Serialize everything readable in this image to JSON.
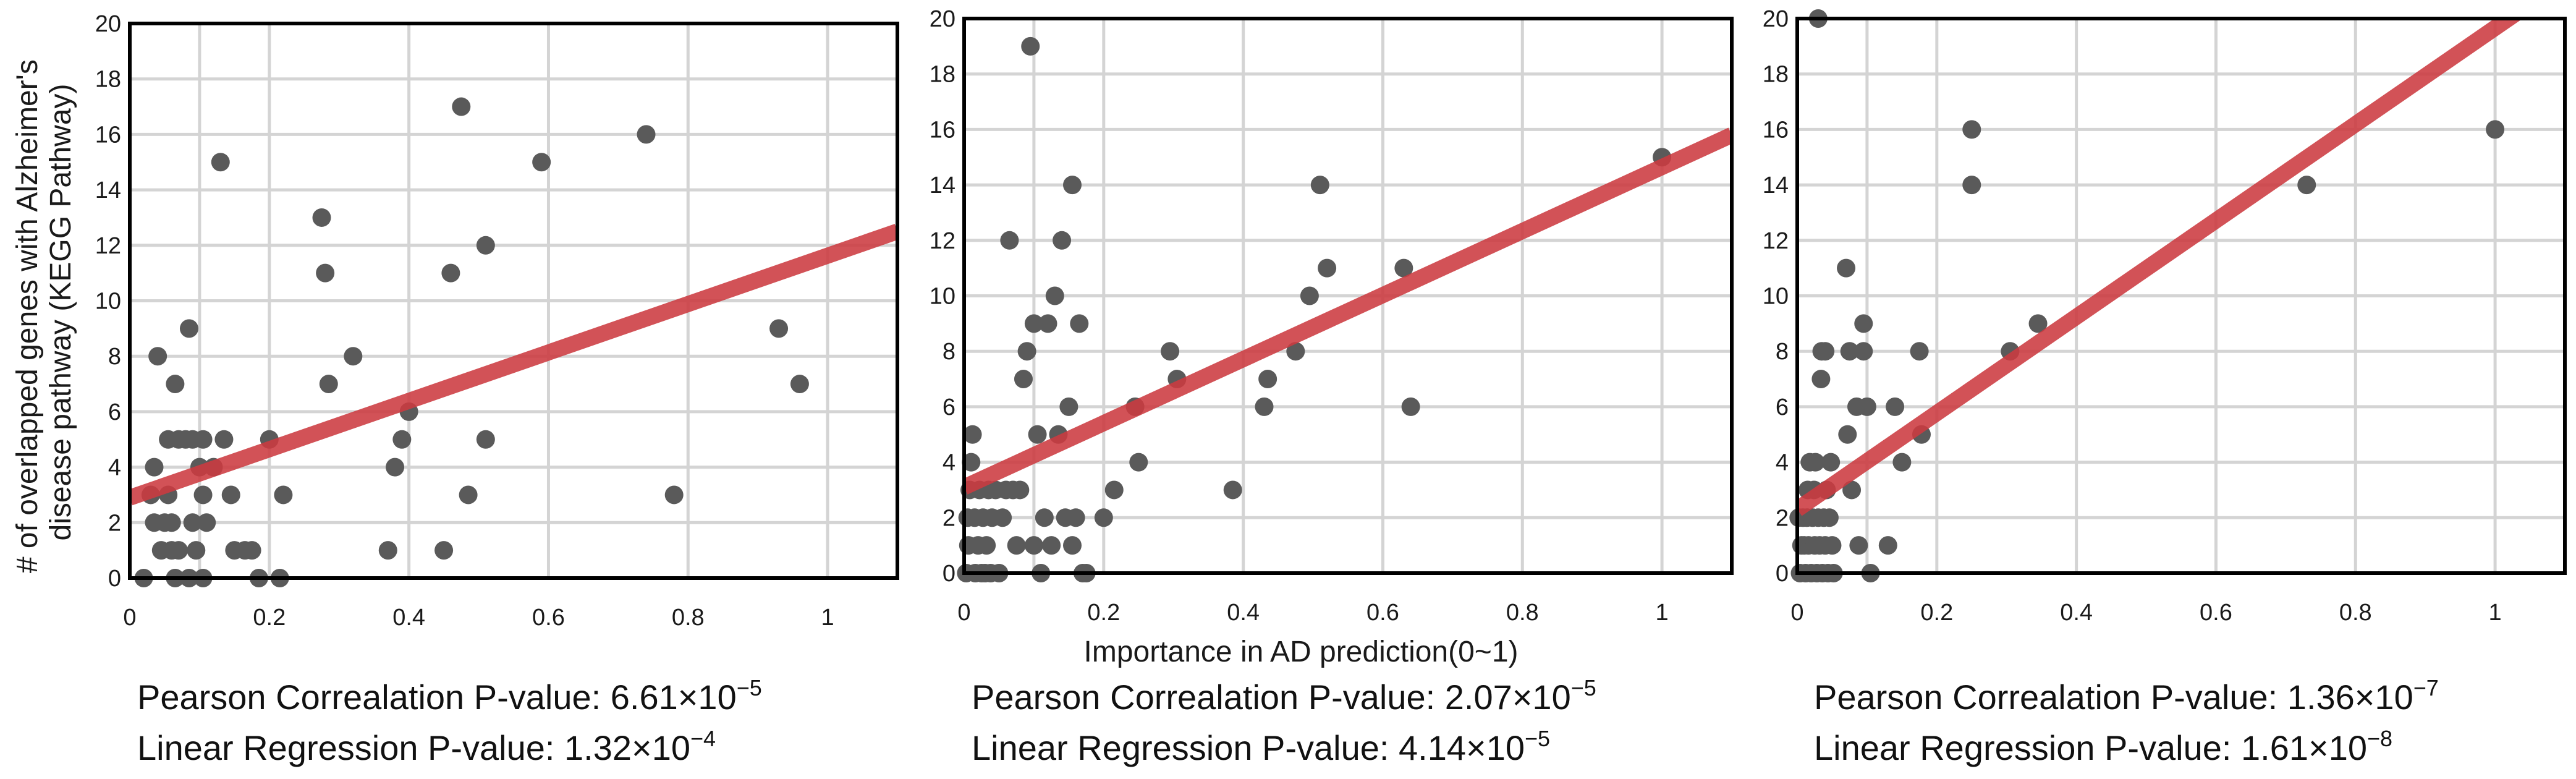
{
  "y_axis_title_line1": "# of overlapped genes with Alzheimer's",
  "y_axis_title_line2": "disease pathway (KEGG Pathway)",
  "x_axis_title": "Importance in AD prediction(0~1)",
  "colors": {
    "points": "#5a5a5a",
    "trend": "#cc3a40",
    "grid": "#d4d4d4",
    "frame": "#000000"
  },
  "chart_data": [
    {
      "type": "scatter",
      "title": "",
      "xlabel": "",
      "ylabel": "# of overlapped genes with Alzheimer's disease pathway (KEGG Pathway)",
      "xlim": [
        0,
        1.1
      ],
      "ylim": [
        0,
        20
      ],
      "xticks": [
        "0",
        "0.2",
        "0.4",
        "0.6",
        "0.8",
        "1"
      ],
      "yticks": [
        "0",
        "2",
        "4",
        "6",
        "8",
        "10",
        "12",
        "14",
        "16",
        "18",
        "20"
      ],
      "trendline": {
        "x0": 0,
        "y0": 2.9,
        "x1": 1.1,
        "y1": 12.5
      },
      "points": [
        [
          0.02,
          0
        ],
        [
          0.03,
          3
        ],
        [
          0.035,
          4
        ],
        [
          0.04,
          8
        ],
        [
          0.035,
          2
        ],
        [
          0.045,
          1
        ],
        [
          0.05,
          2
        ],
        [
          0.055,
          5
        ],
        [
          0.055,
          3
        ],
        [
          0.06,
          2
        ],
        [
          0.06,
          1
        ],
        [
          0.065,
          7
        ],
        [
          0.065,
          0
        ],
        [
          0.07,
          5
        ],
        [
          0.07,
          1
        ],
        [
          0.08,
          5
        ],
        [
          0.085,
          9
        ],
        [
          0.085,
          0
        ],
        [
          0.09,
          5
        ],
        [
          0.09,
          2
        ],
        [
          0.095,
          1
        ],
        [
          0.1,
          4
        ],
        [
          0.105,
          3
        ],
        [
          0.105,
          5
        ],
        [
          0.105,
          0
        ],
        [
          0.11,
          2
        ],
        [
          0.12,
          4
        ],
        [
          0.13,
          15
        ],
        [
          0.135,
          5
        ],
        [
          0.145,
          3
        ],
        [
          0.15,
          1
        ],
        [
          0.165,
          1
        ],
        [
          0.175,
          1
        ],
        [
          0.185,
          0
        ],
        [
          0.2,
          5
        ],
        [
          0.215,
          0
        ],
        [
          0.22,
          3
        ],
        [
          0.275,
          13
        ],
        [
          0.28,
          11
        ],
        [
          0.285,
          7
        ],
        [
          0.32,
          8
        ],
        [
          0.37,
          1
        ],
        [
          0.38,
          4
        ],
        [
          0.39,
          5
        ],
        [
          0.4,
          6
        ],
        [
          0.45,
          1
        ],
        [
          0.46,
          11
        ],
        [
          0.475,
          17
        ],
        [
          0.485,
          3
        ],
        [
          0.51,
          12
        ],
        [
          0.51,
          5
        ],
        [
          0.59,
          15
        ],
        [
          0.74,
          16
        ],
        [
          0.78,
          3
        ],
        [
          0.93,
          9
        ],
        [
          0.96,
          7
        ]
      ]
    },
    {
      "type": "scatter",
      "title": "",
      "xlabel": "Importance in AD prediction(0~1)",
      "ylabel": "",
      "xlim": [
        0,
        1.1
      ],
      "ylim": [
        0,
        20
      ],
      "xticks": [
        "0",
        "0.2",
        "0.4",
        "0.6",
        "0.8",
        "1"
      ],
      "yticks": [
        "0",
        "2",
        "4",
        "6",
        "8",
        "10",
        "12",
        "14",
        "16",
        "18",
        "20"
      ],
      "trendline": {
        "x0": 0,
        "y0": 3.1,
        "x1": 1.1,
        "y1": 15.8
      },
      "points": [
        [
          0.003,
          0
        ],
        [
          0.005,
          2
        ],
        [
          0.006,
          1
        ],
        [
          0.008,
          3
        ],
        [
          0.01,
          4
        ],
        [
          0.012,
          5
        ],
        [
          0.015,
          2
        ],
        [
          0.016,
          0
        ],
        [
          0.02,
          1
        ],
        [
          0.022,
          3
        ],
        [
          0.025,
          0
        ],
        [
          0.027,
          2
        ],
        [
          0.03,
          0
        ],
        [
          0.032,
          1
        ],
        [
          0.035,
          3
        ],
        [
          0.038,
          0
        ],
        [
          0.04,
          2
        ],
        [
          0.045,
          3
        ],
        [
          0.05,
          0
        ],
        [
          0.055,
          2
        ],
        [
          0.06,
          3
        ],
        [
          0.065,
          12
        ],
        [
          0.07,
          3
        ],
        [
          0.075,
          1
        ],
        [
          0.08,
          3
        ],
        [
          0.085,
          7
        ],
        [
          0.09,
          8
        ],
        [
          0.095,
          19
        ],
        [
          0.1,
          9
        ],
        [
          0.1,
          1
        ],
        [
          0.105,
          5
        ],
        [
          0.11,
          0
        ],
        [
          0.115,
          2
        ],
        [
          0.12,
          9
        ],
        [
          0.125,
          1
        ],
        [
          0.13,
          10
        ],
        [
          0.135,
          5
        ],
        [
          0.14,
          12
        ],
        [
          0.145,
          2
        ],
        [
          0.15,
          6
        ],
        [
          0.155,
          14
        ],
        [
          0.155,
          1
        ],
        [
          0.16,
          2
        ],
        [
          0.165,
          9
        ],
        [
          0.17,
          0
        ],
        [
          0.175,
          0
        ],
        [
          0.2,
          2
        ],
        [
          0.215,
          3
        ],
        [
          0.245,
          6
        ],
        [
          0.25,
          4
        ],
        [
          0.295,
          8
        ],
        [
          0.305,
          7
        ],
        [
          0.385,
          3
        ],
        [
          0.43,
          6
        ],
        [
          0.435,
          7
        ],
        [
          0.475,
          8
        ],
        [
          0.495,
          10
        ],
        [
          0.51,
          14
        ],
        [
          0.52,
          11
        ],
        [
          0.63,
          11
        ],
        [
          0.64,
          6
        ],
        [
          1.0,
          15
        ]
      ]
    },
    {
      "type": "scatter",
      "title": "",
      "xlabel": "",
      "ylabel": "",
      "xlim": [
        0,
        1.1
      ],
      "ylim": [
        0,
        20
      ],
      "xticks": [
        "0",
        "0.2",
        "0.4",
        "0.6",
        "0.8",
        "1"
      ],
      "yticks": [
        "0",
        "2",
        "4",
        "6",
        "8",
        "10",
        "12",
        "14",
        "16",
        "18",
        "20"
      ],
      "trendline": {
        "x0": 0,
        "y0": 2.3,
        "x1": 1.1,
        "y1": 21.4
      },
      "points": [
        [
          0.002,
          2
        ],
        [
          0.004,
          0
        ],
        [
          0.006,
          1
        ],
        [
          0.008,
          2
        ],
        [
          0.01,
          1
        ],
        [
          0.012,
          0
        ],
        [
          0.014,
          2
        ],
        [
          0.015,
          3
        ],
        [
          0.016,
          1
        ],
        [
          0.018,
          4
        ],
        [
          0.02,
          0
        ],
        [
          0.022,
          2
        ],
        [
          0.024,
          3
        ],
        [
          0.025,
          1
        ],
        [
          0.026,
          4
        ],
        [
          0.028,
          0
        ],
        [
          0.03,
          20
        ],
        [
          0.03,
          2
        ],
        [
          0.032,
          1
        ],
        [
          0.034,
          7
        ],
        [
          0.035,
          8
        ],
        [
          0.036,
          0
        ],
        [
          0.038,
          2
        ],
        [
          0.04,
          1
        ],
        [
          0.04,
          8
        ],
        [
          0.042,
          3
        ],
        [
          0.044,
          0
        ],
        [
          0.046,
          2
        ],
        [
          0.048,
          4
        ],
        [
          0.05,
          1
        ],
        [
          0.052,
          0
        ],
        [
          0.07,
          11
        ],
        [
          0.072,
          5
        ],
        [
          0.075,
          8
        ],
        [
          0.078,
          3
        ],
        [
          0.085,
          6
        ],
        [
          0.088,
          1
        ],
        [
          0.095,
          9
        ],
        [
          0.095,
          8
        ],
        [
          0.1,
          6
        ],
        [
          0.105,
          0
        ],
        [
          0.13,
          1
        ],
        [
          0.14,
          6
        ],
        [
          0.15,
          4
        ],
        [
          0.175,
          8
        ],
        [
          0.178,
          5
        ],
        [
          0.25,
          16
        ],
        [
          0.25,
          14
        ],
        [
          0.305,
          8
        ],
        [
          0.345,
          9
        ],
        [
          0.73,
          14
        ],
        [
          1.0,
          16
        ]
      ]
    }
  ],
  "stats": [
    {
      "pearson_label": "Pearson Correalation P-value: ",
      "pearson_mantissa": "6.61×10",
      "pearson_exp": "−5",
      "regression_label": "Linear Regression P-value: ",
      "regression_mantissa": "1.32×10",
      "regression_exp": "−4"
    },
    {
      "pearson_label": "Pearson Correalation P-value: ",
      "pearson_mantissa": "2.07×10",
      "pearson_exp": "−5",
      "regression_label": "Linear Regression P-value: ",
      "regression_mantissa": "4.14×10",
      "regression_exp": "−5"
    },
    {
      "pearson_label": "Pearson Correalation P-value: ",
      "pearson_mantissa": "1.36×10",
      "pearson_exp": "−7",
      "regression_label": "Linear Regression P-value: ",
      "regression_mantissa": "1.61×10",
      "regression_exp": "−8"
    }
  ]
}
